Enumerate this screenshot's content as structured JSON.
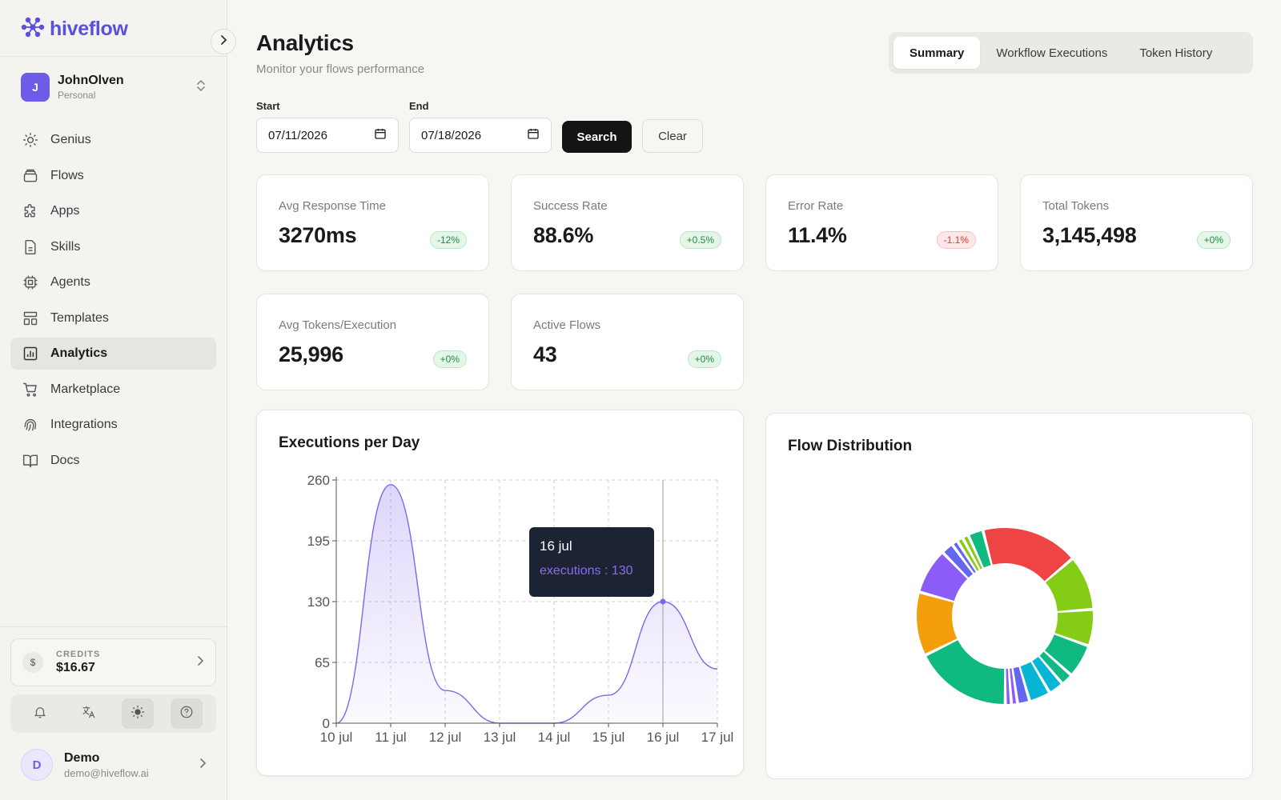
{
  "app": {
    "logo_text": "hiveflow",
    "brand_color": "#5a4fe0"
  },
  "account": {
    "initial": "J",
    "name": "JohnOlven",
    "plan": "Personal"
  },
  "sidebar": {
    "items": [
      {
        "label": "Genius",
        "icon": "lightbulb-icon"
      },
      {
        "label": "Flows",
        "icon": "layers-icon"
      },
      {
        "label": "Apps",
        "icon": "puzzle-icon"
      },
      {
        "label": "Skills",
        "icon": "file-icon"
      },
      {
        "label": "Agents",
        "icon": "cpu-icon"
      },
      {
        "label": "Templates",
        "icon": "layout-icon"
      },
      {
        "label": "Analytics",
        "icon": "bar-chart-icon",
        "active": true
      },
      {
        "label": "Marketplace",
        "icon": "cart-icon"
      },
      {
        "label": "Integrations",
        "icon": "fingerprint-icon"
      },
      {
        "label": "Docs",
        "icon": "book-icon"
      }
    ]
  },
  "credits": {
    "label": "CREDITS",
    "value": "$16.67"
  },
  "user": {
    "initial": "D",
    "name": "Demo",
    "email": "demo@hiveflow.ai"
  },
  "header": {
    "title": "Analytics",
    "subtitle": "Monitor your flows performance"
  },
  "tabs": [
    {
      "label": "Summary",
      "active": true
    },
    {
      "label": "Workflow Executions"
    },
    {
      "label": "Token History"
    }
  ],
  "filters": {
    "start_label": "Start",
    "start_value": "07/11/2026",
    "end_label": "End",
    "end_value": "07/18/2026",
    "search_label": "Search",
    "clear_label": "Clear"
  },
  "metrics": [
    {
      "label": "Avg Response Time",
      "value": "3270ms",
      "change": "-12%",
      "trend": "pos"
    },
    {
      "label": "Success Rate",
      "value": "88.6%",
      "change": "+0.5%",
      "trend": "pos"
    },
    {
      "label": "Error Rate",
      "value": "11.4%",
      "change": "-1.1%",
      "trend": "neg"
    },
    {
      "label": "Total Tokens",
      "value": "3,145,498",
      "change": "+0%",
      "trend": "pos"
    },
    {
      "label": "Avg Tokens/Execution",
      "value": "25,996",
      "change": "+0%",
      "trend": "pos"
    },
    {
      "label": "Active Flows",
      "value": "43",
      "change": "+0%",
      "trend": "pos"
    }
  ],
  "executions_chart": {
    "title": "Executions per Day",
    "tooltip_date": "16 jul",
    "tooltip_text": "executions : 130"
  },
  "flow_chart": {
    "title": "Flow Distribution"
  },
  "chart_data": [
    {
      "type": "area",
      "title": "Executions per Day",
      "x": [
        "10 jul",
        "11 jul",
        "12 jul",
        "13 jul",
        "14 jul",
        "15 jul",
        "16 jul",
        "17 jul"
      ],
      "series": [
        {
          "values": [
            0,
            255,
            35,
            0,
            0,
            30,
            130,
            58
          ]
        }
      ],
      "ylim": [
        0,
        260
      ],
      "yticks": [
        0,
        65,
        130,
        195,
        260
      ],
      "grid": true,
      "line_color": "#7b68ee",
      "highlighted_point": {
        "x": "16 jul",
        "y": 130
      }
    },
    {
      "type": "pie",
      "title": "Flow Distribution",
      "donut": true,
      "slices": [
        {
          "value": 16,
          "color": "#ef4444"
        },
        {
          "value": 9,
          "color": "#84cc16"
        },
        {
          "value": 6,
          "color": "#84cc16"
        },
        {
          "value": 5.5,
          "color": "#10b981"
        },
        {
          "value": 2,
          "color": "#10b981"
        },
        {
          "value": 2.5,
          "color": "#06b6d4"
        },
        {
          "value": 3.5,
          "color": "#06b6d4"
        },
        {
          "value": 2,
          "color": "#6366f1"
        },
        {
          "value": 1,
          "color": "#8b5cf6"
        },
        {
          "value": 1,
          "color": "#8b5cf6"
        },
        {
          "value": 16,
          "color": "#10b981"
        },
        {
          "value": 10.5,
          "color": "#f59e0b"
        },
        {
          "value": 7.5,
          "color": "#8b5cf6"
        },
        {
          "value": 2,
          "color": "#6366f1"
        },
        {
          "value": 1,
          "color": "#6366f1"
        },
        {
          "value": 1,
          "color": "#84cc16"
        },
        {
          "value": 1,
          "color": "#84cc16"
        },
        {
          "value": 2.5,
          "color": "#10b981"
        }
      ]
    }
  ]
}
